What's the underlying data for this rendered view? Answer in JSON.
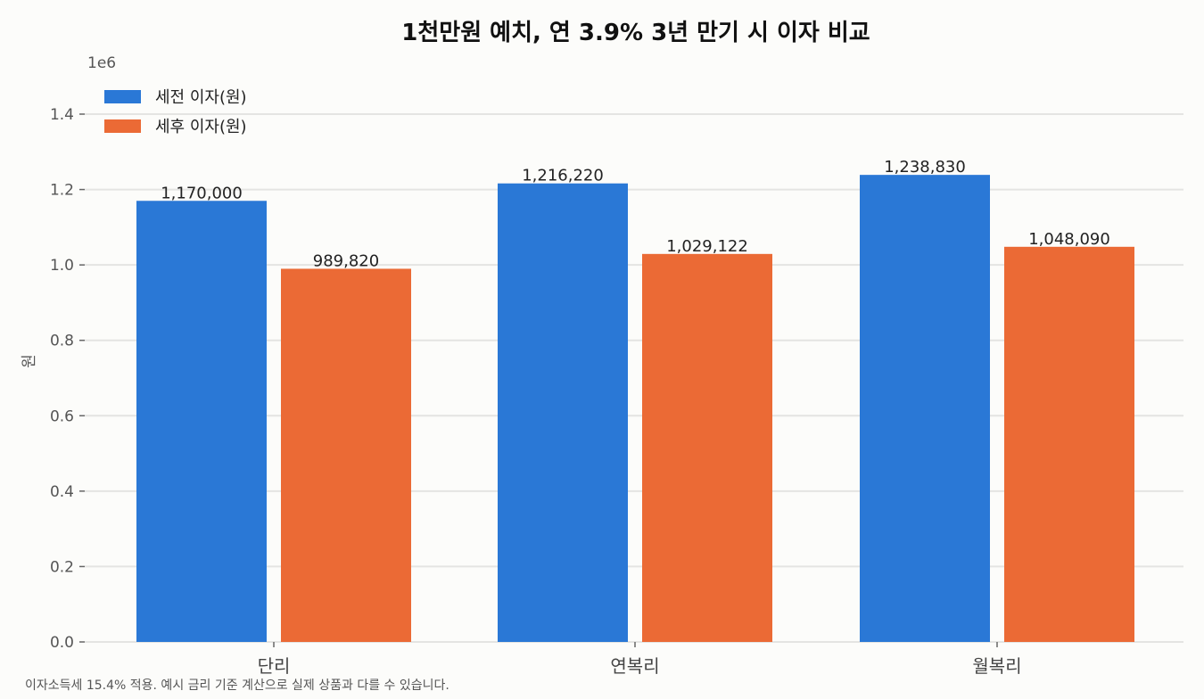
{
  "chart_data": {
    "type": "bar",
    "title": "1천만원 예치, 연 3.9% 3년 만기 시 이자 비교",
    "ylabel": "원",
    "y_offset_label": "1e6",
    "ylim": [
      0,
      1500000
    ],
    "y_ticks": [
      0,
      200000,
      400000,
      600000,
      800000,
      1000000,
      1200000,
      1400000
    ],
    "y_tick_labels": [
      "0.0",
      "0.2",
      "0.4",
      "0.6",
      "0.8",
      "1.0",
      "1.2",
      "1.4"
    ],
    "grid": true,
    "legend_position": "top-left",
    "categories": [
      "단리",
      "연복리",
      "월복리"
    ],
    "series": [
      {
        "name": "세전 이자(원)",
        "color": "#2a78d6",
        "values": [
          1170000,
          1216220,
          1238830
        ],
        "labels": [
          "1,170,000",
          "1,216,220",
          "1,238,830"
        ]
      },
      {
        "name": "세후 이자(원)",
        "color": "#eb6a35",
        "values": [
          989820,
          1029122,
          1048090
        ],
        "labels": [
          "989,820",
          "1,029,122",
          "1,048,090"
        ]
      }
    ],
    "footnote": "이자소득세 15.4% 적용. 예시 금리 기준 계산으로 실제 상품과 다를 수 있습니다."
  }
}
